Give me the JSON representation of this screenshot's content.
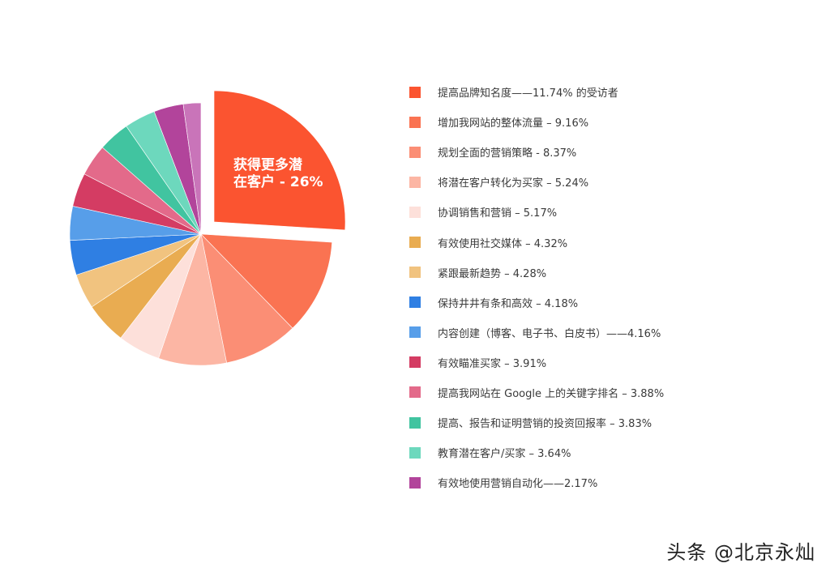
{
  "chart_data": {
    "type": "pie",
    "exploded_slice_label": [
      "获得更多潜",
      "在客户 - 26%"
    ],
    "slices": [
      {
        "label": "获得更多潜在客户 - 26%",
        "value": 26,
        "color": "#fb5430"
      },
      {
        "label": "提高品牌知名度——11.74% 的受访者",
        "value": 11.74,
        "color": "#fa7352"
      },
      {
        "label": "增加我网站的整体流量 – 9.16%",
        "value": 9.16,
        "color": "#fb8e75"
      },
      {
        "label": "规划全面的营销策略 - 8.37%",
        "value": 8.37,
        "color": "#fcb6a4"
      },
      {
        "label": "将潜在客户转化为买家 – 5.24%",
        "value": 5.24,
        "color": "#fde0da"
      },
      {
        "label": "协调销售和营销 – 5.17%",
        "value": 5.17,
        "color": "#e9ac51"
      },
      {
        "label": "有效使用社交媒体 – 4.32%",
        "value": 4.32,
        "color": "#f1c37f"
      },
      {
        "label": "紧跟最新趋势 – 4.28%",
        "value": 4.28,
        "color": "#2f7fe3"
      },
      {
        "label": "保持井井有条和高效 – 4.18%",
        "value": 4.18,
        "color": "#579ee9"
      },
      {
        "label": "内容创建（博客、电子书、白皮书）——4.16%",
        "value": 4.16,
        "color": "#d43c63"
      },
      {
        "label": "有效瞄准买家 – 3.91%",
        "value": 3.91,
        "color": "#e36a8a"
      },
      {
        "label": "提高我网站在 Google 上的关键字排名 – 3.88%",
        "value": 3.88,
        "color": "#41c4a0"
      },
      {
        "label": "提高、报告和证明营销的投资回报率 – 3.83%",
        "value": 3.83,
        "color": "#6dd8bd"
      },
      {
        "label": "教育潜在客户/买家 – 3.64%",
        "value": 3.64,
        "color": "#b2449b"
      },
      {
        "label": "有效地使用营销自动化——2.17%",
        "value": 2.17,
        "color": "#c974b9"
      }
    ]
  },
  "legend": [
    {
      "label": "提高品牌知名度——11.74% 的受访者",
      "color": "#fb5430"
    },
    {
      "label": "增加我网站的整体流量 – 9.16%",
      "color": "#fa7352"
    },
    {
      "label": "规划全面的营销策略 - 8.37%",
      "color": "#fb8e75"
    },
    {
      "label": "将潜在客户转化为买家 – 5.24%",
      "color": "#fcb6a4"
    },
    {
      "label": "协调销售和营销 – 5.17%",
      "color": "#fde0da"
    },
    {
      "label": "有效使用社交媒体 – 4.32%",
      "color": "#e9ac51"
    },
    {
      "label": "紧跟最新趋势 – 4.28%",
      "color": "#f1c37f"
    },
    {
      "label": "保持井井有条和高效 – 4.18%",
      "color": "#2f7fe3"
    },
    {
      "label": "内容创建（博客、电子书、白皮书）——4.16%",
      "color": "#579ee9"
    },
    {
      "label": "有效瞄准买家 – 3.91%",
      "color": "#d43c63"
    },
    {
      "label": "提高我网站在 Google 上的关键字排名 – 3.88%",
      "color": "#e36a8a"
    },
    {
      "label": "提高、报告和证明营销的投资回报率 – 3.83%",
      "color": "#41c4a0"
    },
    {
      "label": "教育潜在客户/买家 – 3.64%",
      "color": "#6dd8bd"
    },
    {
      "label": "有效地使用营销自动化——2.17%",
      "color": "#b2449b"
    },
    {
      "label": "",
      "color": "#c974b9"
    }
  ],
  "watermark": "头条 @北京永灿"
}
